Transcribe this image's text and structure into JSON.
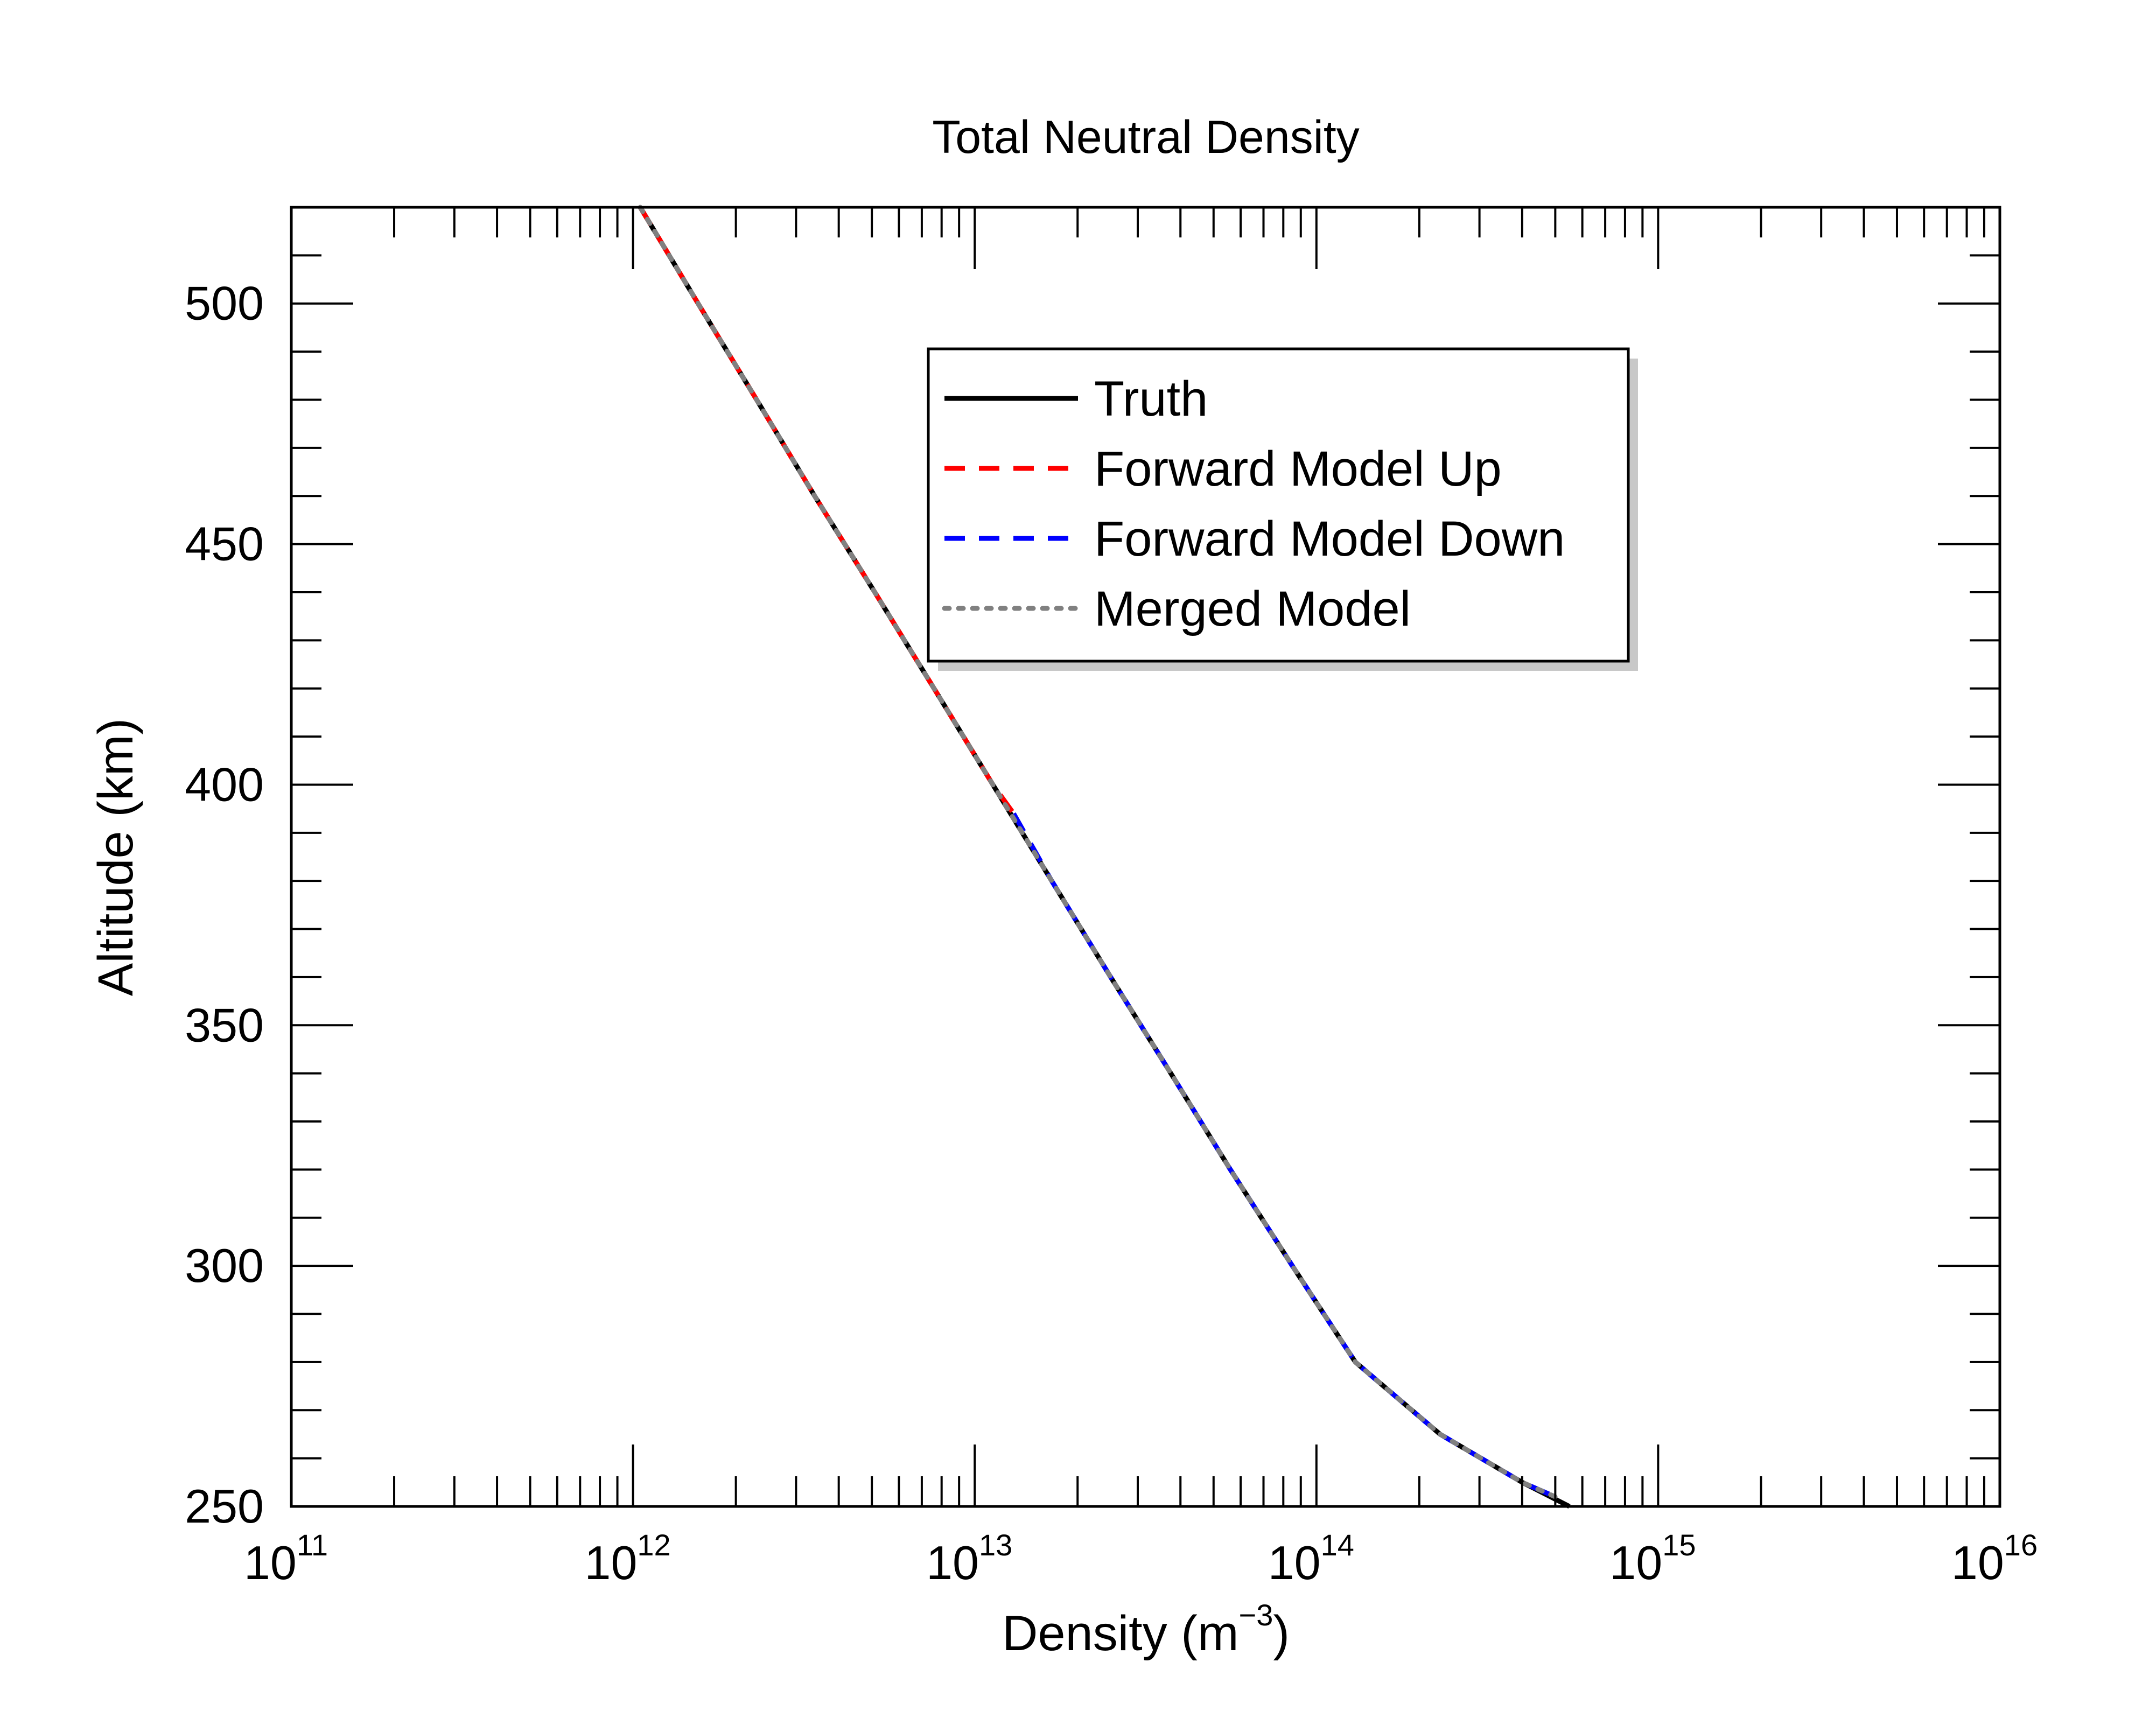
{
  "chart_data": {
    "type": "line",
    "title": "Total Neutral Density",
    "xlabel": "Density (m",
    "xlabel_sup": "−3",
    "xlabel_end": ")",
    "ylabel": "Altitude (km)",
    "xscale": "log",
    "xlim": [
      100000000000.0,
      1e+16
    ],
    "ylim": [
      250,
      520
    ],
    "x_ticks": [
      {
        "base": "10",
        "exp": "11",
        "value": 100000000000.0
      },
      {
        "base": "10",
        "exp": "12",
        "value": 1000000000000.0
      },
      {
        "base": "10",
        "exp": "13",
        "value": 10000000000000.0
      },
      {
        "base": "10",
        "exp": "14",
        "value": 100000000000000.0
      },
      {
        "base": "10",
        "exp": "15",
        "value": 1000000000000000.0
      },
      {
        "base": "10",
        "exp": "16",
        "value": 1e+16
      }
    ],
    "y_ticks": [
      "250",
      "300",
      "350",
      "400",
      "450",
      "500"
    ],
    "grid": false,
    "legend_position": "top-center",
    "series": [
      {
        "name": "Truth",
        "color": "#000000",
        "style": "solid",
        "points": [
          [
            1050000000000.0,
            520
          ],
          [
            1550000000000.0,
            500
          ],
          [
            2300000000000.0,
            480
          ],
          [
            3400000000000.0,
            460
          ],
          [
            5100000000000.0,
            440
          ],
          [
            7600000000000.0,
            420
          ],
          [
            11300000000000.0,
            400
          ],
          [
            16800000000000.0,
            380
          ],
          [
            25000000000000.0,
            360
          ],
          [
            37500000000000.0,
            340
          ],
          [
            56000000000000.0,
            320
          ],
          [
            85000000000000.0,
            300
          ],
          [
            130000000000000.0,
            280
          ],
          [
            230000000000000.0,
            265
          ],
          [
            400000000000000.0,
            255
          ],
          [
            550000000000000.0,
            250
          ]
        ]
      },
      {
        "name": "Forward Model Up",
        "color": "#ff0000",
        "style": "dashed",
        "points": [
          [
            1050000000000.0,
            520
          ],
          [
            1550000000000.0,
            500
          ],
          [
            2300000000000.0,
            480
          ],
          [
            3400000000000.0,
            460
          ],
          [
            5100000000000.0,
            440
          ],
          [
            7600000000000.0,
            420
          ],
          [
            11300000000000.0,
            400
          ],
          [
            13000000000000.0,
            394
          ]
        ]
      },
      {
        "name": "Forward Model Down",
        "color": "#0000ff",
        "style": "dashed",
        "points": [
          [
            13000000000000.0,
            394
          ],
          [
            16800000000000.0,
            380
          ],
          [
            25000000000000.0,
            360
          ],
          [
            37500000000000.0,
            340
          ],
          [
            56000000000000.0,
            320
          ],
          [
            85000000000000.0,
            300
          ],
          [
            130000000000000.0,
            280
          ],
          [
            230000000000000.0,
            265
          ],
          [
            400000000000000.0,
            255
          ],
          [
            500000000000000.0,
            252
          ]
        ]
      },
      {
        "name": "Merged Model",
        "color": "#808080",
        "style": "dotted",
        "points": [
          [
            1050000000000.0,
            520
          ],
          [
            1550000000000.0,
            500
          ],
          [
            2300000000000.0,
            480
          ],
          [
            3400000000000.0,
            460
          ],
          [
            5100000000000.0,
            440
          ],
          [
            7600000000000.0,
            420
          ],
          [
            11300000000000.0,
            400
          ],
          [
            16800000000000.0,
            380
          ],
          [
            25000000000000.0,
            360
          ],
          [
            37500000000000.0,
            340
          ],
          [
            56000000000000.0,
            320
          ],
          [
            85000000000000.0,
            300
          ],
          [
            130000000000000.0,
            280
          ],
          [
            230000000000000.0,
            265
          ],
          [
            400000000000000.0,
            255
          ],
          [
            500000000000000.0,
            252
          ]
        ]
      }
    ]
  }
}
